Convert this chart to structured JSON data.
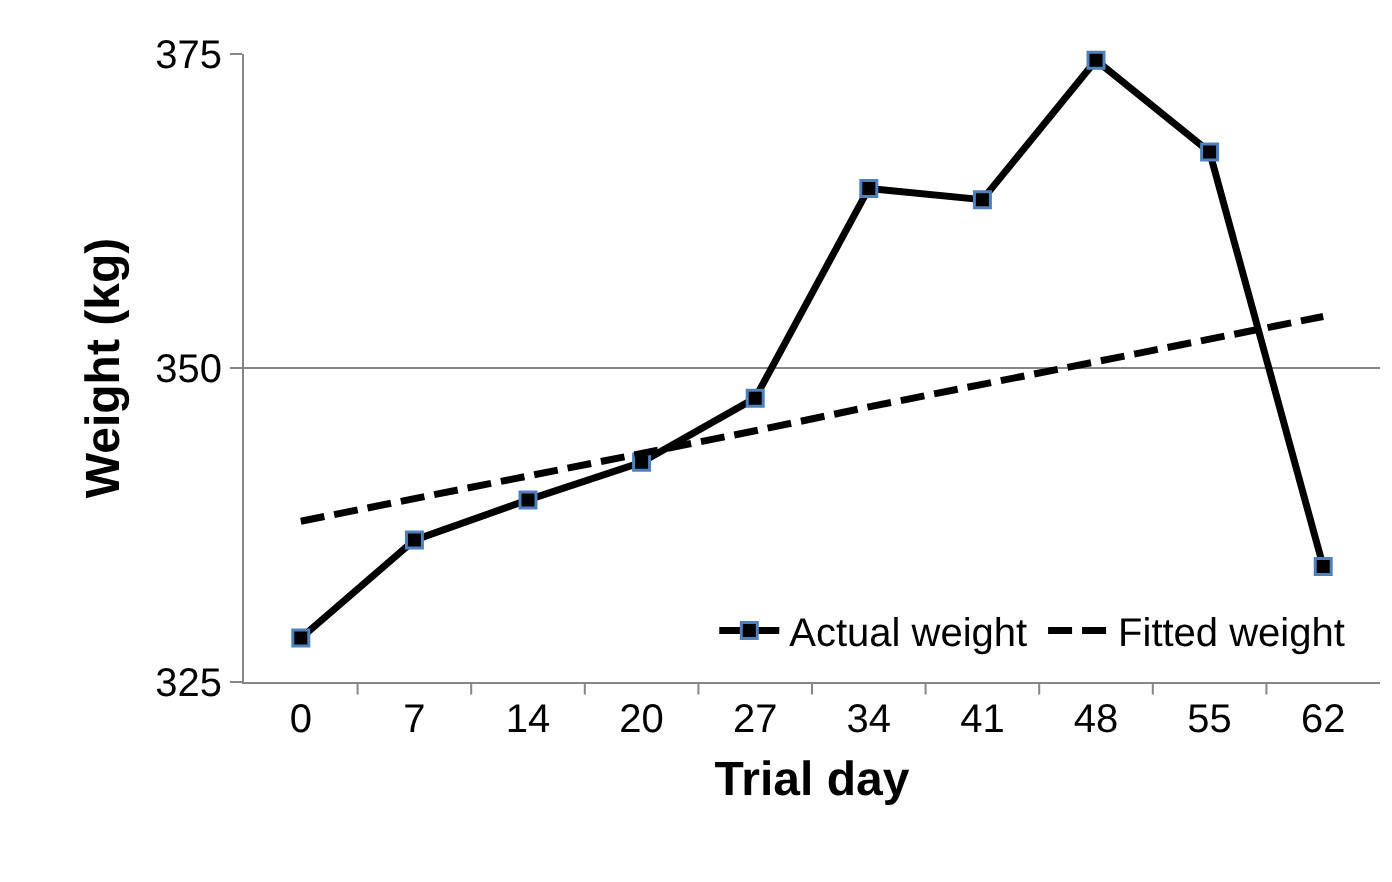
{
  "chart_data": {
    "type": "line",
    "xlabel": "Trial day",
    "ylabel": "Weight (kg)",
    "categories": [
      "0",
      "7",
      "14",
      "20",
      "27",
      "34",
      "41",
      "48",
      "55",
      "62"
    ],
    "series": [
      {
        "name": "Actual weight",
        "color": "#000000",
        "marker": "square",
        "line_style": "solid",
        "values": [
          328.5,
          336.3,
          339.5,
          342.5,
          347.6,
          364.3,
          363.4,
          374.5,
          367.2,
          334.2
        ]
      },
      {
        "name": "Fitted weight",
        "color": "#000000",
        "marker": "none",
        "line_style": "dashed",
        "values": [
          337.8,
          339.6,
          341.4,
          343.2,
          345.0,
          346.9,
          348.7,
          350.5,
          352.3,
          354.1
        ]
      }
    ],
    "ylim": [
      325,
      375
    ],
    "yticks": [
      325,
      350,
      375
    ],
    "grid": "y",
    "legend": "bottom"
  }
}
